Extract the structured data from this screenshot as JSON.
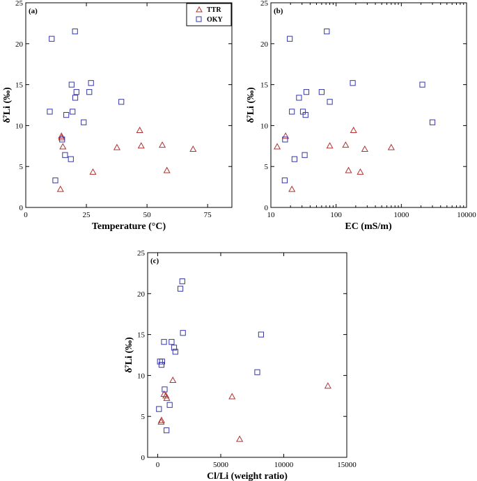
{
  "colors": {
    "TTR": "#b03030",
    "OKY": "#3535a8"
  },
  "chart_data": [
    {
      "panel": "(a)",
      "type": "scatter",
      "xlabel": "Temperature (°C)",
      "ylabel": "δ⁷Li (‰)",
      "xscale": "linear",
      "xlim": [
        0,
        85
      ],
      "ylim": [
        0,
        25
      ],
      "xticks": [
        0,
        25,
        50,
        75
      ],
      "xticklabels": [
        "0",
        "25",
        "50",
        "75"
      ],
      "yticks": [
        0,
        5,
        10,
        15,
        20,
        25
      ],
      "yticklabels": [
        "0",
        "5",
        "10",
        "15",
        "20",
        "25"
      ],
      "legend": {
        "placement": "top-right",
        "entries": [
          "TTR",
          "OKY"
        ]
      },
      "series": [
        {
          "name": "TTR",
          "marker": "triangle",
          "points": [
            [
              14.7,
              8.7
            ],
            [
              14.8,
              8.5
            ],
            [
              15.3,
              7.4
            ],
            [
              14.3,
              2.2
            ],
            [
              27.7,
              4.3
            ],
            [
              37.6,
              7.3
            ],
            [
              47,
              9.4
            ],
            [
              47.6,
              7.5
            ],
            [
              56.3,
              7.6
            ],
            [
              58.2,
              4.5
            ],
            [
              69,
              7.1
            ]
          ]
        },
        {
          "name": "OKY",
          "marker": "square",
          "points": [
            [
              10.7,
              20.6
            ],
            [
              20.3,
              21.5
            ],
            [
              26.9,
              15.2
            ],
            [
              18.9,
              15
            ],
            [
              20.9,
              14.1
            ],
            [
              26.2,
              14.1
            ],
            [
              20.4,
              13.4
            ],
            [
              39.4,
              12.9
            ],
            [
              9.9,
              11.7
            ],
            [
              19.3,
              11.7
            ],
            [
              16.7,
              11.3
            ],
            [
              23.9,
              10.4
            ],
            [
              15,
              8.3
            ],
            [
              16.2,
              6.4
            ],
            [
              18.6,
              5.9
            ],
            [
              12.2,
              3.3
            ]
          ]
        }
      ]
    },
    {
      "panel": "(b)",
      "type": "scatter",
      "xlabel": "EC (mS/m)",
      "ylabel": "δ⁷Li (‰)",
      "xscale": "log",
      "xlim": [
        10,
        10000
      ],
      "ylim": [
        0,
        25
      ],
      "xticks": [
        10,
        100,
        1000,
        10000
      ],
      "xticklabels": [
        "10",
        "100",
        "1000",
        "10000"
      ],
      "yticks": [
        0,
        5,
        10,
        15,
        20,
        25
      ],
      "yticklabels": [
        "0",
        "5",
        "10",
        "15",
        "20",
        "25"
      ],
      "series": [
        {
          "name": "TTR",
          "marker": "triangle",
          "points": [
            [
              12.5,
              7.4
            ],
            [
              16.8,
              8.7
            ],
            [
              21,
              2.2
            ],
            [
              80,
              7.5
            ],
            [
              140,
              7.6
            ],
            [
              155,
              4.5
            ],
            [
              185,
              9.4
            ],
            [
              235,
              4.3
            ],
            [
              275,
              7.1
            ],
            [
              700,
              7.3
            ]
          ]
        },
        {
          "name": "OKY",
          "marker": "square",
          "points": [
            [
              19.5,
              20.6
            ],
            [
              72,
              21.5
            ],
            [
              180,
              15.2
            ],
            [
              2100,
              15
            ],
            [
              35,
              14.1
            ],
            [
              60,
              14.1
            ],
            [
              27,
              13.4
            ],
            [
              80,
              12.9
            ],
            [
              21,
              11.7
            ],
            [
              31,
              11.7
            ],
            [
              34,
              11.3
            ],
            [
              3000,
              10.4
            ],
            [
              16.5,
              8.3
            ],
            [
              33,
              6.4
            ],
            [
              23,
              5.9
            ],
            [
              16.3,
              3.3
            ]
          ]
        }
      ]
    },
    {
      "panel": "(c)",
      "type": "scatter",
      "xlabel": "Cl/Li (weight ratio)",
      "ylabel": "δ⁷Li (‰)",
      "xscale": "linear",
      "xlim": [
        -800,
        15000
      ],
      "ylim": [
        0,
        25
      ],
      "xticks": [
        0,
        5000,
        10000,
        15000
      ],
      "xticklabels": [
        "0",
        "5000",
        "10000",
        "15000"
      ],
      "yticks": [
        0,
        5,
        10,
        15,
        20,
        25
      ],
      "yticklabels": [
        "0",
        "5",
        "10",
        "15",
        "20",
        "25"
      ],
      "series": [
        {
          "name": "TTR",
          "marker": "triangle",
          "points": [
            [
              13500,
              8.7
            ],
            [
              1200,
              9.4
            ],
            [
              500,
              7.7
            ],
            [
              650,
              7.5
            ],
            [
              720,
              7.2
            ],
            [
              5900,
              7.4
            ],
            [
              300,
              4.5
            ],
            [
              270,
              4.3
            ],
            [
              6500,
              2.2
            ]
          ]
        },
        {
          "name": "OKY",
          "marker": "square",
          "points": [
            [
              1950,
              21.5
            ],
            [
              1800,
              20.6
            ],
            [
              2000,
              15.2
            ],
            [
              8200,
              15
            ],
            [
              500,
              14.1
            ],
            [
              1100,
              14.1
            ],
            [
              1300,
              13.4
            ],
            [
              1400,
              12.9
            ],
            [
              180,
              11.7
            ],
            [
              350,
              11.7
            ],
            [
              300,
              11.3
            ],
            [
              7900,
              10.4
            ],
            [
              550,
              8.3
            ],
            [
              950,
              6.4
            ],
            [
              100,
              5.9
            ],
            [
              700,
              3.3
            ]
          ]
        }
      ]
    }
  ]
}
